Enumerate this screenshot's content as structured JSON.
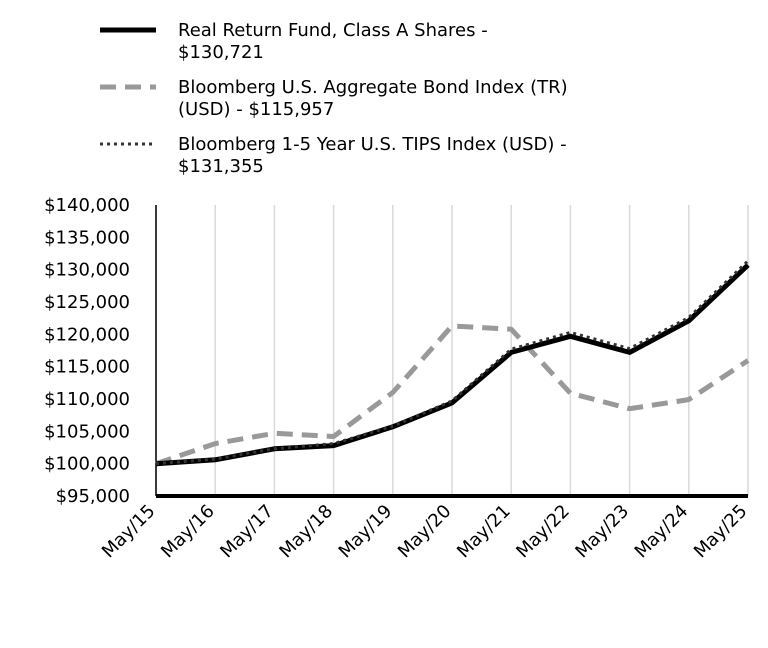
{
  "chart_data": {
    "type": "line",
    "title": "",
    "xlabel": "",
    "ylabel": "",
    "x": [
      "May/15",
      "May/16",
      "May/17",
      "May/18",
      "May/19",
      "May/20",
      "May/21",
      "May/22",
      "May/23",
      "May/24",
      "May/25"
    ],
    "ylim": [
      95000,
      140000
    ],
    "yticks": [
      "$95,000",
      "$100,000",
      "$105,000",
      "$110,000",
      "$115,000",
      "$120,000",
      "$125,000",
      "$130,000",
      "$135,000",
      "$140,000"
    ],
    "grid": "vertical",
    "legend_position": "top-left",
    "series": [
      {
        "name": "Real Return Fund, Class A Shares - $130,721",
        "legend_lines": [
          "Real Return Fund, Class A Shares -",
          "$130,721"
        ],
        "style": "solid",
        "color": "#000000",
        "values": [
          100000,
          100600,
          102300,
          102800,
          105700,
          109400,
          117200,
          119700,
          117200,
          122100,
          130721
        ]
      },
      {
        "name": "Bloomberg U.S. Aggregate Bond Index (TR) (USD) - $115,957",
        "legend_lines": [
          "Bloomberg U.S. Aggregate Bond Index (TR)",
          "(USD) - $115,957"
        ],
        "style": "dashed",
        "color": "#999999",
        "values": [
          100000,
          103100,
          104700,
          104200,
          111000,
          121300,
          120800,
          110900,
          108500,
          109900,
          115957
        ]
      },
      {
        "name": "Bloomberg 1-5 Year U.S. TIPS Index (USD) - $131,355",
        "legend_lines": [
          "Bloomberg 1-5 Year U.S. TIPS Index (USD) -",
          "$131,355"
        ],
        "style": "dotted",
        "color": "#333333",
        "values": [
          100000,
          100700,
          102300,
          103100,
          105800,
          109700,
          117700,
          120300,
          117800,
          122600,
          131355
        ]
      }
    ]
  }
}
